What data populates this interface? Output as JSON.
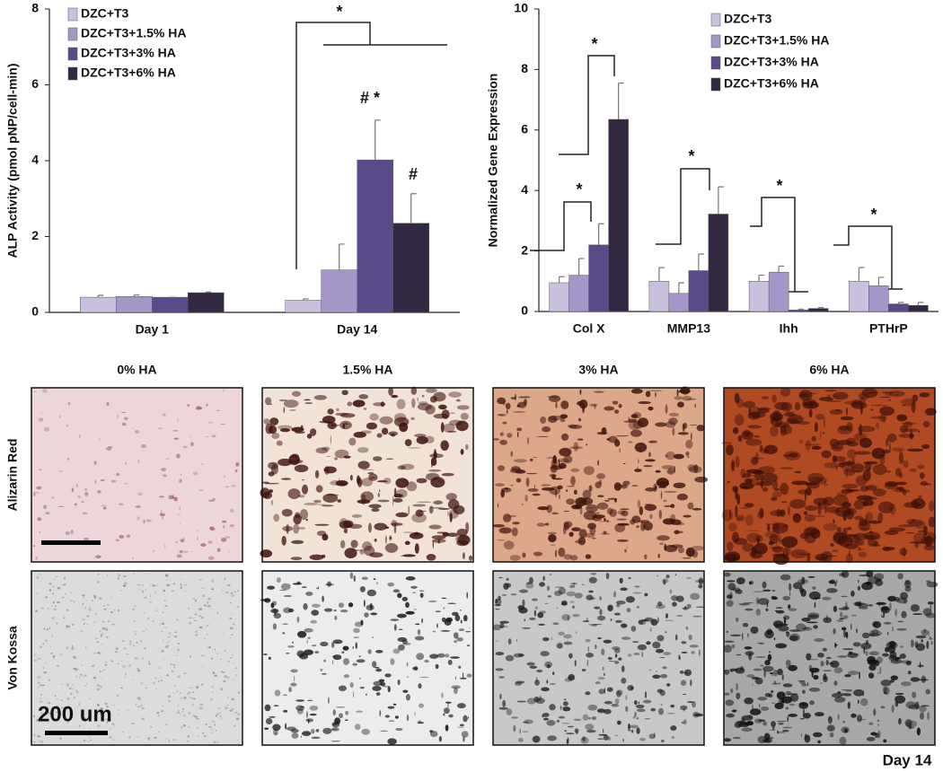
{
  "chart_data": [
    {
      "type": "bar",
      "y_label": "ALP Activity (pmol pNP/cell-min)",
      "categories": [
        "Day 1",
        "Day 14"
      ],
      "ylim": [
        0,
        8
      ],
      "yticks": [
        0,
        2,
        4,
        6,
        8
      ],
      "series": [
        {
          "name": "DZC+T3",
          "color": "#c9c1de",
          "values": [
            0.4,
            0.32
          ],
          "errors": [
            0.05,
            0.04
          ]
        },
        {
          "name": "DZC+T3+1.5% HA",
          "color": "#a596c8",
          "values": [
            0.42,
            1.12
          ],
          "errors": [
            0.04,
            0.68
          ]
        },
        {
          "name": "DZC+T3+3% HA",
          "color": "#5a4a8a",
          "values": [
            0.4,
            4.02
          ],
          "errors": [
            0.0,
            1.05
          ]
        },
        {
          "name": "DZC+T3+6% HA",
          "color": "#332842",
          "values": [
            0.52,
            2.35
          ],
          "errors": [
            0.02,
            0.78
          ]
        }
      ],
      "annotations": [
        "*",
        "# *",
        "#"
      ]
    },
    {
      "type": "bar",
      "y_label": "Normalized Gene Expression",
      "categories": [
        "Col X",
        "MMP13",
        "Ihh",
        "PTHrP"
      ],
      "ylim": [
        0,
        10
      ],
      "yticks": [
        0,
        2,
        4,
        6,
        8,
        10
      ],
      "series": [
        {
          "name": "DZC+T3",
          "color": "#c9c1de",
          "values": [
            0.95,
            1.0,
            1.0,
            1.0
          ],
          "errors": [
            0.2,
            0.45,
            0.2,
            0.45
          ]
        },
        {
          "name": "DZC+T3+1.5% HA",
          "color": "#a596c8",
          "values": [
            1.2,
            0.6,
            1.3,
            0.85
          ],
          "errors": [
            0.55,
            0.35,
            0.2,
            0.28
          ]
        },
        {
          "name": "DZC+T3+3% HA",
          "color": "#5a4a8a",
          "values": [
            2.2,
            1.35,
            0.05,
            0.25
          ],
          "errors": [
            0.7,
            0.55,
            0.03,
            0.05
          ]
        },
        {
          "name": "DZC+T3+6% HA",
          "color": "#332842",
          "values": [
            6.35,
            3.22,
            0.1,
            0.2
          ],
          "errors": [
            1.2,
            0.9,
            0.03,
            0.1
          ]
        }
      ],
      "annotations": [
        "*",
        "*",
        "*",
        "*",
        "*"
      ]
    }
  ],
  "panels": {
    "columns": [
      "0% HA",
      "1.5% HA",
      "3% HA",
      "6% HA"
    ],
    "rows": [
      "Alizarin Red",
      "Von Kossa"
    ],
    "scale_bar": "200 um",
    "footer": "Day 14"
  }
}
